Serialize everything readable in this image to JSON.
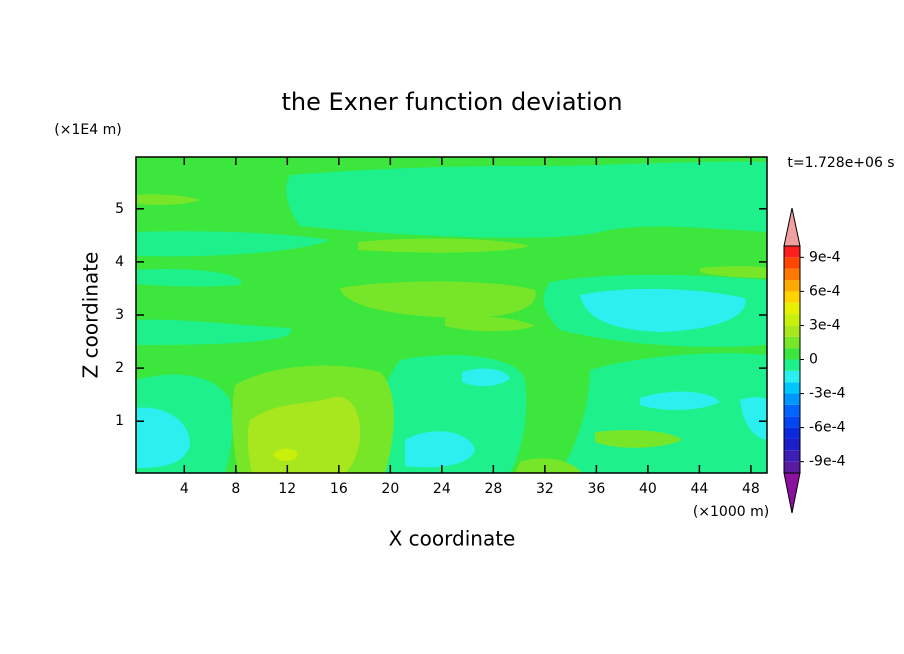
{
  "chart_data": {
    "type": "contour",
    "title": "the Exner function deviation",
    "x_label": "X coordinate",
    "y_label": "Z coordinate",
    "x_unit": "(×1000 m)",
    "y_unit": "(×1E4 m)",
    "time_label": "t=1.728e+06 s",
    "xlim": [
      0.25,
      49.25
    ],
    "xticks": [
      4,
      8,
      12,
      16,
      20,
      24,
      28,
      32,
      36,
      40,
      44,
      48
    ],
    "ylim": [
      0.025,
      5.975
    ],
    "yticks": [
      1,
      2,
      3,
      4,
      5
    ],
    "colorbar": {
      "levels": [
        -0.001,
        -0.0009,
        -0.0008,
        -0.0007,
        -0.0006,
        -0.0005,
        -0.0004,
        -0.0003,
        -0.0002,
        -0.0001,
        0,
        0.0001,
        0.0002,
        0.0003,
        0.0004,
        0.0005,
        0.0006,
        0.0007,
        0.0008,
        0.0009,
        0.001
      ],
      "colors": [
        "#5a1aa0",
        "#3c1eb4",
        "#1e1ec8",
        "#0a28dc",
        "#0046f0",
        "#0064ff",
        "#0096ff",
        "#00c8ff",
        "#2cf0f0",
        "#1ef08c",
        "#3ce63c",
        "#78e628",
        "#a8e61e",
        "#c8f00a",
        "#e6f000",
        "#ffd200",
        "#ffaa00",
        "#ff7800",
        "#ff4600",
        "#ff1e1e"
      ],
      "over_color": "#f0a0a0",
      "under_color": "#8c10a0",
      "ticks": [
        {
          "value": 0.0009,
          "label": "9e-4"
        },
        {
          "value": 0.0006,
          "label": "6e-4"
        },
        {
          "value": 0.0003,
          "label": "3e-4"
        },
        0,
        {
          "value": -0.0003,
          "label": "-3e-4"
        },
        {
          "value": -0.0006,
          "label": "-6e-4"
        },
        {
          "value": -0.0009,
          "label": "-9e-4"
        }
      ]
    }
  }
}
